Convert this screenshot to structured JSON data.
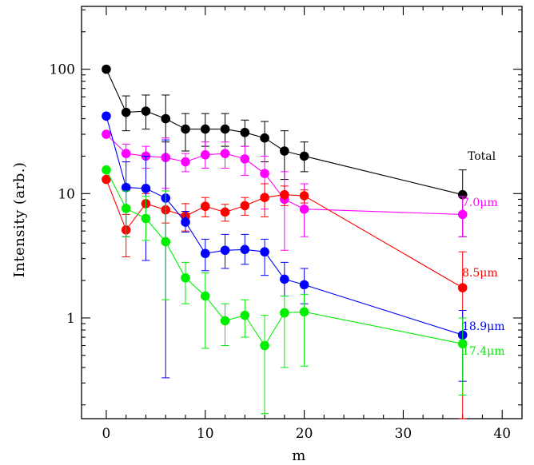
{
  "chart_data": {
    "type": "scatter",
    "xlabel": "m",
    "ylabel": "Intensity  (arb.)",
    "xlim": [
      -2.5,
      42
    ],
    "ylim": [
      0.155,
      320
    ],
    "y_scale": "log",
    "grid": false,
    "legend": "inline labels at right end of each series",
    "x_ticks": [
      0,
      10,
      20,
      30,
      40
    ],
    "y_ticks": [
      1,
      10,
      100
    ],
    "x_tick_labels": [
      "0",
      "10",
      "20",
      "30",
      "40"
    ],
    "y_tick_labels": [
      "1",
      "10",
      "100"
    ],
    "series": [
      {
        "name": "Total",
        "color": "#000000",
        "x": [
          0,
          2,
          4,
          6,
          8,
          10,
          12,
          14,
          16,
          18,
          20,
          36
        ],
        "y": [
          100,
          45,
          46,
          40,
          33,
          33,
          33,
          31,
          28,
          22,
          20,
          9.8
        ],
        "y_low": [
          100,
          32,
          33,
          26,
          22,
          24,
          24,
          24,
          18,
          13,
          15,
          4.5
        ],
        "y_high": [
          100,
          61,
          62,
          62,
          44,
          44,
          44,
          39,
          38,
          32,
          26,
          15.5
        ]
      },
      {
        "name": "7.0μm",
        "color": "#ff00ff",
        "x": [
          0,
          2,
          4,
          6,
          8,
          10,
          12,
          14,
          16,
          18,
          20,
          36
        ],
        "y": [
          30,
          21,
          20,
          19.5,
          18,
          20.5,
          21,
          19,
          14.5,
          9,
          7.5,
          6.8
        ],
        "y_low": [
          30,
          18,
          16,
          11,
          15,
          16,
          16,
          14,
          7.5,
          3.5,
          4.5,
          4.5
        ],
        "y_high": [
          30,
          25,
          24,
          28,
          21,
          26,
          26,
          24,
          20,
          15,
          12,
          9.5
        ]
      },
      {
        "name": "8.5μm",
        "color": "#ff0000",
        "x": [
          0,
          2,
          4,
          6,
          8,
          10,
          12,
          14,
          16,
          18,
          20,
          36
        ],
        "y": [
          13,
          5.1,
          8.3,
          7.4,
          6.6,
          7.9,
          7.1,
          8,
          9.3,
          9.8,
          9.6,
          1.75
        ],
        "y_low": [
          13,
          3.1,
          6.5,
          5.8,
          5,
          6.5,
          6,
          6.7,
          6.5,
          8,
          8.4,
          0.15
        ],
        "y_high": [
          13,
          6.8,
          10,
          9,
          8.3,
          9.3,
          8.2,
          9.3,
          12,
          11.5,
          10.7,
          3.4
        ]
      },
      {
        "name": "18.9μm",
        "color": "#0000ff",
        "x": [
          0,
          2,
          4,
          6,
          8,
          10,
          12,
          14,
          16,
          18,
          20,
          36
        ],
        "y": [
          42,
          11.2,
          11,
          9.2,
          5.9,
          3.3,
          3.5,
          3.55,
          3.4,
          2.05,
          1.85,
          0.73
        ],
        "y_low": [
          42,
          4.5,
          2.9,
          0.33,
          4.9,
          2.4,
          2.5,
          2.7,
          2.2,
          1.5,
          1.3,
          0.31
        ],
        "y_high": [
          42,
          18,
          20,
          27,
          7.2,
          4.3,
          4.7,
          4.7,
          4.3,
          2.8,
          2.5,
          1.15
        ]
      },
      {
        "name": "17.4μm",
        "color": "#00ee00",
        "x": [
          0,
          2,
          4,
          6,
          8,
          10,
          12,
          14,
          16,
          18,
          20,
          36
        ],
        "y": [
          15.5,
          7.6,
          6.3,
          4.1,
          2.1,
          1.5,
          0.95,
          1.05,
          0.6,
          1.1,
          1.12,
          0.62
        ],
        "y_low": [
          15.5,
          4.5,
          4.2,
          1.4,
          1.3,
          0.57,
          0.6,
          0.7,
          0.17,
          0.4,
          0.41,
          0.24
        ],
        "y_high": [
          15.5,
          10.5,
          9.5,
          10.5,
          2.8,
          2.3,
          1.3,
          1.4,
          1.05,
          1.5,
          1.55,
          1.0
        ]
      }
    ],
    "series_labels": [
      {
        "text": "Total",
        "color": "#000000"
      },
      {
        "text": "7.0μm",
        "color": "#ff00ff"
      },
      {
        "text": "8.5μm",
        "color": "#ff0000"
      },
      {
        "text": "18.9μm",
        "color": "#0000ff"
      },
      {
        "text": "17.4μm",
        "color": "#00ee00"
      }
    ]
  }
}
